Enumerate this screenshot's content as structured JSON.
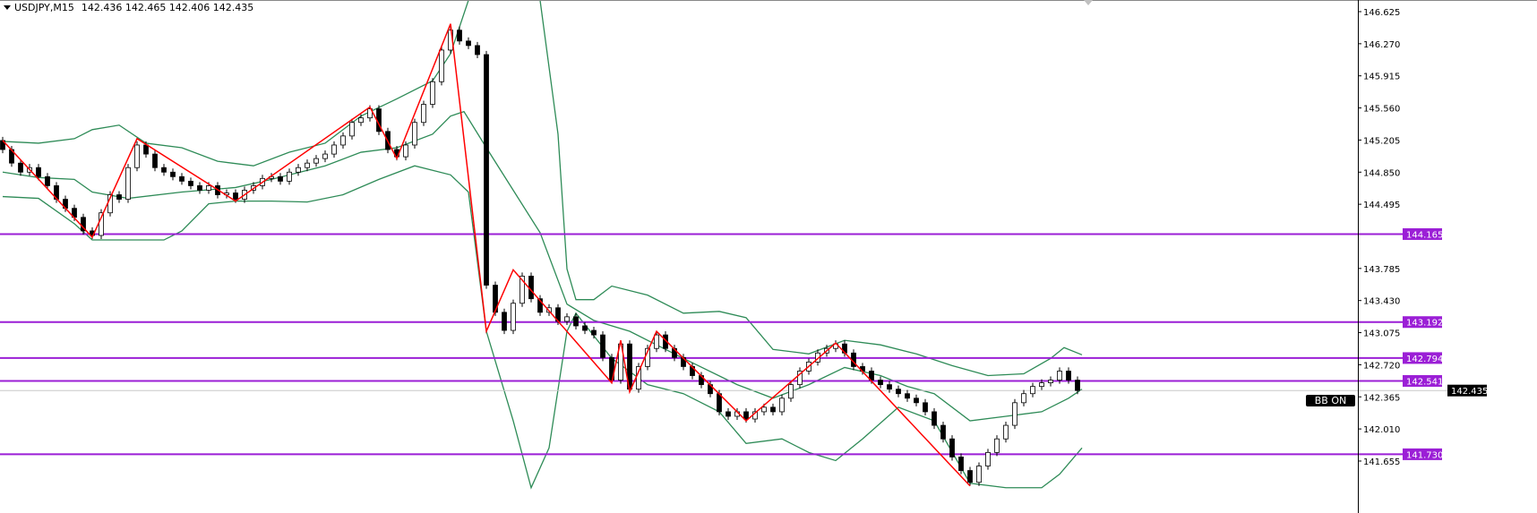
{
  "header": {
    "symbol": "USDJPY,M15",
    "ohlc": "142.436 142.465 142.406 142.435"
  },
  "indicator_label": "BB ON",
  "colors": {
    "zigzag": "#ff0000",
    "bands": "#2e8b57",
    "levels": "#9b1fd6",
    "bull_body": "#ffffff",
    "bear_body": "#000000",
    "current_price": "#000000"
  },
  "chart_data": {
    "type": "candlestick",
    "title": "USDJPY,M15",
    "ylim": [
      141.45,
      146.75
    ],
    "grid": false,
    "y_ticks": [
      "146.625",
      "146.270",
      "145.915",
      "145.560",
      "145.205",
      "144.850",
      "144.495",
      "143.785",
      "143.430",
      "143.075",
      "142.720",
      "142.365",
      "142.010",
      "141.655"
    ],
    "closes": [
      145.1,
      144.95,
      144.85,
      144.9,
      144.8,
      144.7,
      144.55,
      144.45,
      144.35,
      144.2,
      144.15,
      144.4,
      144.6,
      144.55,
      144.9,
      145.15,
      145.05,
      144.9,
      144.85,
      144.8,
      144.75,
      144.7,
      144.65,
      144.7,
      144.6,
      144.62,
      144.55,
      144.65,
      144.7,
      144.78,
      144.8,
      144.75,
      144.85,
      144.9,
      144.95,
      145.0,
      145.05,
      145.15,
      145.25,
      145.4,
      145.45,
      145.55,
      145.3,
      145.1,
      145.02,
      145.15,
      145.4,
      145.6,
      145.85,
      146.2,
      146.42,
      146.3,
      146.25,
      146.15,
      143.6,
      143.3,
      143.1,
      143.4,
      143.7,
      143.45,
      143.3,
      143.35,
      143.2,
      143.25,
      143.15,
      143.1,
      143.05,
      142.8,
      142.55,
      142.95,
      142.45,
      142.7,
      142.9,
      143.05,
      142.9,
      142.8,
      142.7,
      142.6,
      142.5,
      142.4,
      142.2,
      142.15,
      142.2,
      142.12,
      142.2,
      142.25,
      142.2,
      142.35,
      142.5,
      142.65,
      142.75,
      142.85,
      142.9,
      142.95,
      142.85,
      142.7,
      142.65,
      142.55,
      142.5,
      142.45,
      142.4,
      142.35,
      142.3,
      142.2,
      142.05,
      141.9,
      141.7,
      141.55,
      141.42,
      141.6,
      141.75,
      141.9,
      142.05,
      142.3,
      142.4,
      142.48,
      142.52,
      142.55,
      142.65,
      142.55,
      142.435
    ],
    "first_open": 145.2,
    "zigzag": [
      [
        0,
        145.2
      ],
      [
        10,
        144.13
      ],
      [
        15,
        145.22
      ],
      [
        26,
        144.53
      ],
      [
        41,
        145.57
      ],
      [
        44,
        145.0
      ],
      [
        50,
        146.49
      ],
      [
        54,
        143.09
      ],
      [
        57,
        143.77
      ],
      [
        68,
        142.52
      ],
      [
        69,
        142.99
      ],
      [
        70,
        142.42
      ],
      [
        73,
        143.09
      ],
      [
        83,
        142.1
      ],
      [
        93,
        142.96
      ],
      [
        108,
        141.38
      ]
    ],
    "bollinger": {
      "upper": [
        [
          0,
          145.19
        ],
        [
          4,
          145.17
        ],
        [
          8,
          145.22
        ],
        [
          10,
          145.32
        ],
        [
          13,
          145.37
        ],
        [
          16,
          145.17
        ],
        [
          20,
          145.12
        ],
        [
          24,
          144.97
        ],
        [
          28,
          144.92
        ],
        [
          32,
          145.07
        ],
        [
          36,
          145.17
        ],
        [
          40,
          145.47
        ],
        [
          44,
          145.66
        ],
        [
          48,
          145.86
        ],
        [
          50,
          146.16
        ],
        [
          52,
          146.75
        ],
        [
          54,
          147.5
        ],
        [
          57,
          148.2
        ],
        [
          60,
          146.75
        ],
        [
          62,
          145.27
        ],
        [
          63,
          143.78
        ],
        [
          64,
          143.44
        ],
        [
          66,
          143.44
        ],
        [
          68,
          143.59
        ],
        [
          72,
          143.49
        ],
        [
          76,
          143.29
        ],
        [
          80,
          143.31
        ],
        [
          83,
          143.24
        ],
        [
          86,
          142.89
        ],
        [
          90,
          142.84
        ],
        [
          94,
          142.99
        ],
        [
          98,
          142.94
        ],
        [
          102,
          142.84
        ],
        [
          106,
          142.71
        ],
        [
          110,
          142.6
        ],
        [
          114,
          142.62
        ],
        [
          117,
          142.79
        ],
        [
          118.5,
          142.91
        ],
        [
          120.5,
          142.83
        ]
      ],
      "middle": [
        [
          0,
          144.85
        ],
        [
          4,
          144.79
        ],
        [
          8,
          144.77
        ],
        [
          10,
          144.63
        ],
        [
          14,
          144.56
        ],
        [
          20,
          144.63
        ],
        [
          26,
          144.68
        ],
        [
          30,
          144.77
        ],
        [
          36,
          144.92
        ],
        [
          40,
          145.07
        ],
        [
          44,
          145.12
        ],
        [
          48,
          145.27
        ],
        [
          50,
          145.47
        ],
        [
          51.5,
          145.52
        ],
        [
          54,
          145.12
        ],
        [
          60,
          144.18
        ],
        [
          63,
          143.39
        ],
        [
          66,
          143.21
        ],
        [
          70,
          143.09
        ],
        [
          76,
          142.79
        ],
        [
          82,
          142.5
        ],
        [
          86,
          142.35
        ],
        [
          90,
          142.5
        ],
        [
          94,
          142.69
        ],
        [
          98,
          142.6
        ],
        [
          101,
          142.48
        ],
        [
          104,
          142.4
        ],
        [
          108,
          142.1
        ],
        [
          112,
          142.15
        ],
        [
          116,
          142.2
        ],
        [
          119,
          142.35
        ],
        [
          120.5,
          142.45
        ]
      ],
      "lower": [
        [
          0,
          144.58
        ],
        [
          4,
          144.56
        ],
        [
          8,
          144.28
        ],
        [
          10,
          144.1
        ],
        [
          14,
          144.1
        ],
        [
          18,
          144.1
        ],
        [
          20,
          144.2
        ],
        [
          23,
          144.5
        ],
        [
          26,
          144.53
        ],
        [
          30,
          144.53
        ],
        [
          34,
          144.52
        ],
        [
          38,
          144.6
        ],
        [
          42,
          144.77
        ],
        [
          46,
          144.92
        ],
        [
          50,
          144.82
        ],
        [
          52,
          144.63
        ],
        [
          54,
          143.09
        ],
        [
          57,
          142.1
        ],
        [
          59,
          141.36
        ],
        [
          61,
          141.8
        ],
        [
          63,
          143.09
        ],
        [
          64,
          143.29
        ],
        [
          68,
          142.79
        ],
        [
          72,
          142.5
        ],
        [
          76,
          142.4
        ],
        [
          80,
          142.2
        ],
        [
          83,
          141.85
        ],
        [
          87,
          141.9
        ],
        [
          90,
          141.75
        ],
        [
          93,
          141.66
        ],
        [
          96,
          141.9
        ],
        [
          100,
          142.25
        ],
        [
          104,
          142.1
        ],
        [
          108,
          141.41
        ],
        [
          112,
          141.36
        ],
        [
          116,
          141.36
        ],
        [
          118,
          141.51
        ],
        [
          120.5,
          141.8
        ]
      ]
    },
    "levels": [
      "144.165",
      "143.192",
      "142.794",
      "142.541",
      "141.730"
    ],
    "current_price": "142.435"
  }
}
